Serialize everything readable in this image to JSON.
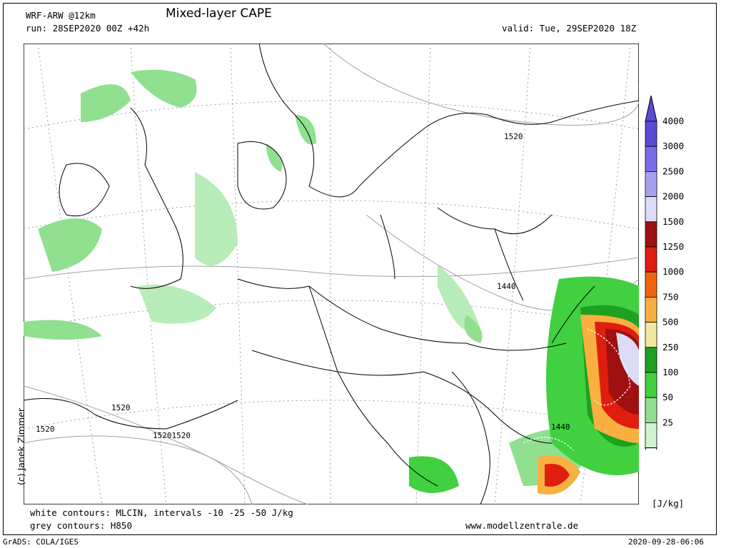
{
  "header": {
    "model": "WRF-ARW @12km",
    "run": "run: 28SEP2020 00Z +42h",
    "title": "Mixed-layer CAPE",
    "valid": "valid: Tue, 29SEP2020 18Z"
  },
  "footer": {
    "white_contours": "white contours: MLCIN, intervals -10 -25 -50 J/kg",
    "grey_contours": "grey contours: H850",
    "website": "www.modellzentrale.de",
    "software": "GrADS: COLA/IGES",
    "timestamp": "2020-09-28-06:06"
  },
  "copyright": "(c) Janek Zimmer",
  "colorbar": {
    "unit": "[J/kg]",
    "levels": [
      {
        "label": "4000",
        "color": "#5a4ad6"
      },
      {
        "label": "3000",
        "color": "#7a6ee8"
      },
      {
        "label": "2500",
        "color": "#a8a0f0"
      },
      {
        "label": "2000",
        "color": "#dcdcf6"
      },
      {
        "label": "1500",
        "color": "#a01010"
      },
      {
        "label": "1250",
        "color": "#e01e10"
      },
      {
        "label": "1000",
        "color": "#f06410"
      },
      {
        "label": "750",
        "color": "#f8b040"
      },
      {
        "label": "500",
        "color": "#f0e8a0"
      },
      {
        "label": "250",
        "color": "#20a020"
      },
      {
        "label": "100",
        "color": "#40d040"
      },
      {
        "label": "50",
        "color": "#90e090"
      },
      {
        "label": "25",
        "color": "#d0f4d0"
      }
    ]
  },
  "map_labels": {
    "h850_1520_ne": "1520",
    "h850_1440_center": "1440",
    "h850_1520_sw1": "1520",
    "h850_1520_w": "1520",
    "h850_1520_sw2": "15201520",
    "h850_1440_se": "1440"
  }
}
